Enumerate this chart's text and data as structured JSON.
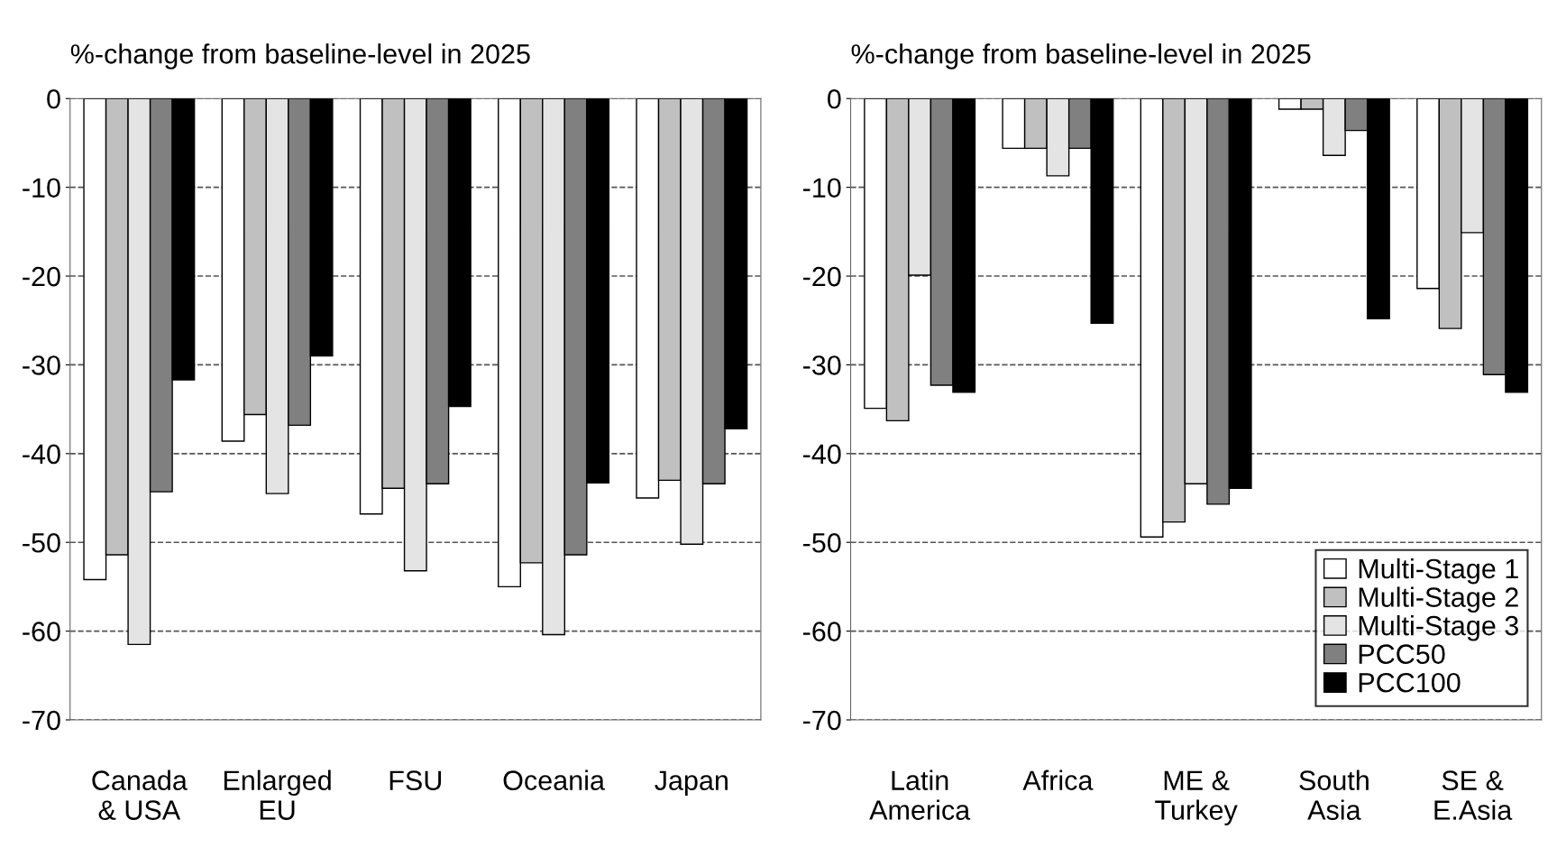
{
  "chart_data": [
    {
      "type": "bar",
      "title": "%-change from baseline-level in 2025",
      "categories": [
        "Canada\n& USA",
        "Enlarged\nEU",
        "FSU",
        "Oceania",
        "Japan"
      ],
      "series": [
        {
          "color": "#ffffff",
          "values": [
            -54.2,
            -38.6,
            -46.8,
            -55.0,
            -45.0
          ]
        },
        {
          "color": "#c0c0c0",
          "values": [
            -51.4,
            -35.6,
            -43.9,
            -52.3,
            -43.0
          ]
        },
        {
          "color": "#e4e4e4",
          "values": [
            -61.5,
            -44.5,
            -53.2,
            -60.4,
            -50.2
          ]
        },
        {
          "color": "#808080",
          "values": [
            -44.3,
            -36.8,
            -43.4,
            -51.4,
            -43.4
          ]
        },
        {
          "color": "#000000",
          "values": [
            -31.7,
            -29.0,
            -34.7,
            -43.3,
            -37.2
          ]
        }
      ],
      "ylim": [
        -70,
        0
      ],
      "yticks": [
        0,
        -10,
        -20,
        -30,
        -40,
        -50,
        -60,
        -70
      ],
      "grid": "y",
      "line_style": "dashed",
      "legend": false
    },
    {
      "type": "bar",
      "title": "%-change from baseline-level in 2025",
      "categories": [
        "Latin\nAmerica",
        "Africa",
        "ME &\nTurkey",
        "South\nAsia",
        "SE &\nE.Asia"
      ],
      "series": [
        {
          "name": "Multi-Stage 1",
          "color": "#ffffff",
          "values": [
            -34.9,
            -5.6,
            -49.4,
            -1.2,
            -21.4
          ]
        },
        {
          "name": "Multi-Stage 2",
          "color": "#c0c0c0",
          "values": [
            -36.3,
            -5.6,
            -47.7,
            -1.2,
            -25.9
          ]
        },
        {
          "name": "Multi-Stage 3",
          "color": "#e4e4e4",
          "values": [
            -19.9,
            -8.7,
            -43.4,
            -6.4,
            -15.1
          ]
        },
        {
          "name": "PCC50",
          "color": "#808080",
          "values": [
            -32.3,
            -5.6,
            -45.7,
            -3.6,
            -31.1
          ]
        },
        {
          "name": "PCC100",
          "color": "#000000",
          "values": [
            -33.1,
            -25.3,
            -43.9,
            -24.8,
            -33.1
          ]
        }
      ],
      "ylim": [
        -70,
        0
      ],
      "yticks": [
        0,
        -10,
        -20,
        -30,
        -40,
        -50,
        -60,
        -70
      ],
      "grid": "y",
      "line_style": "dashed",
      "legend": "bottom right"
    }
  ]
}
